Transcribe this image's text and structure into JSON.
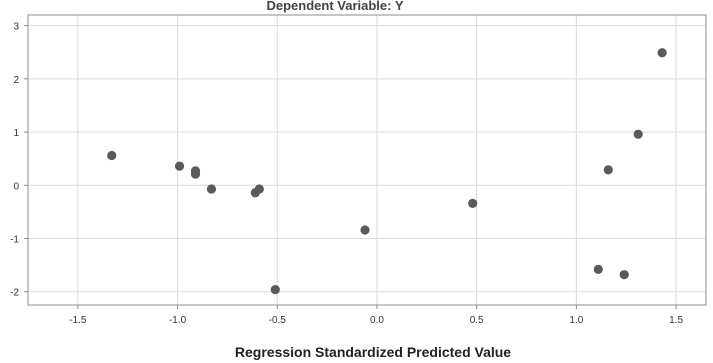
{
  "chart_data": {
    "type": "scatter",
    "title": "Dependent Variable: Y",
    "xlabel": "Regression Standardized Predicted Value",
    "ylabel": "",
    "xlim": [
      -1.75,
      1.65
    ],
    "ylim": [
      -2.25,
      3.2
    ],
    "xticks": [
      -1.5,
      -1.0,
      -0.5,
      0.0,
      0.5,
      1.0,
      1.5
    ],
    "xtick_labels": [
      "-1.5",
      "-1.0",
      "-0.5",
      "0.0",
      "0.5",
      "1.0",
      "1.5"
    ],
    "yticks": [
      3,
      2,
      1,
      0,
      -1,
      -2
    ],
    "ytick_labels": [
      "3",
      "2",
      "1",
      "0",
      "-1",
      "-2"
    ],
    "grid": true,
    "marker_color": "#5a5a5a",
    "points": [
      {
        "x": -1.33,
        "y": 0.56
      },
      {
        "x": -0.99,
        "y": 0.36
      },
      {
        "x": -0.91,
        "y": 0.27
      },
      {
        "x": -0.91,
        "y": 0.21
      },
      {
        "x": -0.83,
        "y": -0.07
      },
      {
        "x": -0.61,
        "y": -0.14
      },
      {
        "x": -0.59,
        "y": -0.07
      },
      {
        "x": -0.51,
        "y": -1.96
      },
      {
        "x": -0.06,
        "y": -0.84
      },
      {
        "x": 0.48,
        "y": -0.34
      },
      {
        "x": 1.11,
        "y": -1.58
      },
      {
        "x": 1.16,
        "y": 0.29
      },
      {
        "x": 1.24,
        "y": -1.68
      },
      {
        "x": 1.31,
        "y": 0.96
      },
      {
        "x": 1.43,
        "y": 2.49
      }
    ]
  }
}
